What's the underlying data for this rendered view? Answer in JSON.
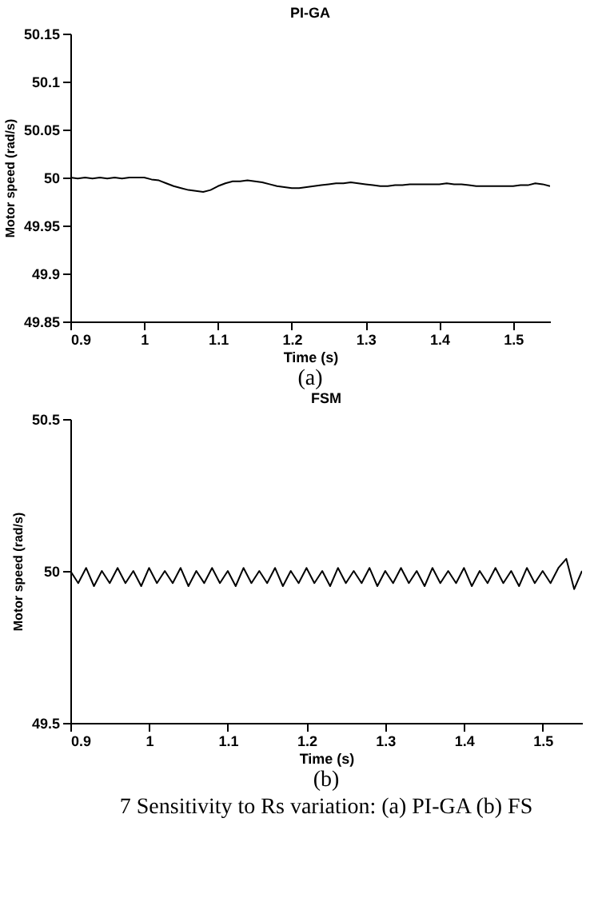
{
  "chart_data": [
    {
      "type": "line",
      "title": "PI-GA",
      "xlabel": "Time (s)",
      "ylabel": "Motor speed (rad/s)",
      "x": [
        0.9,
        0.91,
        0.92,
        0.93,
        0.94,
        0.95,
        0.96,
        0.97,
        0.98,
        0.99,
        1.0,
        1.01,
        1.02,
        1.03,
        1.04,
        1.05,
        1.06,
        1.07,
        1.08,
        1.09,
        1.1,
        1.11,
        1.12,
        1.13,
        1.14,
        1.15,
        1.16,
        1.17,
        1.18,
        1.19,
        1.2,
        1.21,
        1.22,
        1.23,
        1.24,
        1.25,
        1.26,
        1.27,
        1.28,
        1.29,
        1.3,
        1.31,
        1.32,
        1.33,
        1.34,
        1.35,
        1.36,
        1.37,
        1.38,
        1.39,
        1.4,
        1.41,
        1.42,
        1.43,
        1.44,
        1.45,
        1.46,
        1.47,
        1.48,
        1.49,
        1.5,
        1.51,
        1.52,
        1.53,
        1.54,
        1.55
      ],
      "series": [
        {
          "color": "#000000",
          "values": [
            50.0,
            49.999,
            50.0,
            49.999,
            50.0,
            49.999,
            50.0,
            49.999,
            50.0,
            50.0,
            50.0,
            49.998,
            49.997,
            49.994,
            49.991,
            49.989,
            49.987,
            49.986,
            49.985,
            49.987,
            49.991,
            49.994,
            49.996,
            49.996,
            49.997,
            49.996,
            49.995,
            49.993,
            49.991,
            49.99,
            49.989,
            49.989,
            49.99,
            49.991,
            49.992,
            49.993,
            49.994,
            49.994,
            49.995,
            49.994,
            49.993,
            49.992,
            49.991,
            49.991,
            49.992,
            49.992,
            49.993,
            49.993,
            49.993,
            49.993,
            49.993,
            49.994,
            49.993,
            49.993,
            49.992,
            49.991,
            49.991,
            49.991,
            49.991,
            49.991,
            49.991,
            49.992,
            49.992,
            49.994,
            49.993,
            49.991
          ]
        }
      ],
      "xlim": [
        0.9,
        1.55
      ],
      "xticks": [
        0.9,
        1,
        1.1,
        1.2,
        1.3,
        1.4,
        1.5
      ],
      "ylim": [
        49.85,
        50.15
      ],
      "yticks": [
        49.85,
        49.9,
        49.95,
        50,
        50.05,
        50.1,
        50.15
      ],
      "annotations": [
        "(a)"
      ]
    },
    {
      "type": "line",
      "title": "FSM",
      "xlabel": "Time (s)",
      "ylabel": "Motor speed (rad/s)",
      "x": [
        0.9,
        0.91,
        0.92,
        0.93,
        0.94,
        0.95,
        0.96,
        0.97,
        0.98,
        0.99,
        1.0,
        1.01,
        1.02,
        1.03,
        1.04,
        1.05,
        1.06,
        1.07,
        1.08,
        1.09,
        1.1,
        1.11,
        1.12,
        1.13,
        1.14,
        1.15,
        1.16,
        1.17,
        1.18,
        1.19,
        1.2,
        1.21,
        1.22,
        1.23,
        1.24,
        1.25,
        1.26,
        1.27,
        1.28,
        1.29,
        1.3,
        1.31,
        1.32,
        1.33,
        1.34,
        1.35,
        1.36,
        1.37,
        1.38,
        1.39,
        1.4,
        1.41,
        1.42,
        1.43,
        1.44,
        1.45,
        1.46,
        1.47,
        1.48,
        1.49,
        1.5,
        1.51,
        1.52,
        1.53,
        1.54,
        1.55
      ],
      "series": [
        {
          "color": "#000000",
          "values": [
            50.0,
            49.96,
            50.01,
            49.95,
            50.0,
            49.96,
            50.01,
            49.96,
            50.0,
            49.95,
            50.01,
            49.96,
            50.0,
            49.96,
            50.01,
            49.95,
            50.0,
            49.96,
            50.01,
            49.96,
            50.0,
            49.95,
            50.01,
            49.96,
            50.0,
            49.96,
            50.01,
            49.95,
            50.0,
            49.96,
            50.01,
            49.96,
            50.0,
            49.95,
            50.01,
            49.96,
            50.0,
            49.96,
            50.01,
            49.95,
            50.0,
            49.96,
            50.01,
            49.96,
            50.0,
            49.95,
            50.01,
            49.96,
            50.0,
            49.96,
            50.01,
            49.95,
            50.0,
            49.96,
            50.01,
            49.96,
            50.0,
            49.95,
            50.01,
            49.96,
            50.0,
            49.96,
            50.01,
            50.04,
            49.94,
            50.0
          ]
        }
      ],
      "xlim": [
        0.9,
        1.55
      ],
      "xticks": [
        0.9,
        1,
        1.1,
        1.2,
        1.3,
        1.4,
        1.5
      ],
      "ylim": [
        49.5,
        50.5
      ],
      "yticks": [
        49.5,
        50,
        50.5
      ],
      "annotations": [
        "(b)",
        "7 Sensitivity to Rs variation: (a) PI-GA (b) FS"
      ]
    }
  ]
}
